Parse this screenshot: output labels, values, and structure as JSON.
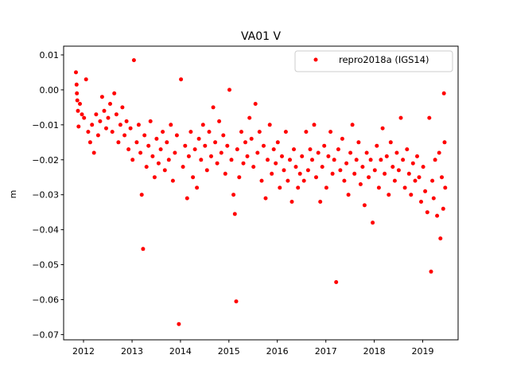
{
  "chart_data": {
    "type": "scatter",
    "title": "VA01 V",
    "xlabel": "",
    "ylabel": "m",
    "xlim": [
      "2011-08-04",
      "2019-09-25"
    ],
    "ylim": [
      -0.0715,
      0.0125
    ],
    "x_ticks": [
      "2012",
      "2013",
      "2014",
      "2015",
      "2016",
      "2017",
      "2018",
      "2019"
    ],
    "y_ticks": [
      "0.01",
      "0.00",
      "−0.01",
      "−0.02",
      "−0.03",
      "−0.04",
      "−0.05",
      "−0.06",
      "−0.07"
    ],
    "y_tick_values": [
      0.01,
      0.0,
      -0.01,
      -0.02,
      -0.03,
      -0.04,
      -0.05,
      -0.06,
      -0.07
    ],
    "grid": false,
    "legend_position": "top-right",
    "marker_color": "#ff0000",
    "series": [
      {
        "name": "repro2018a (IGS14)",
        "color": "#ff0000",
        "points": [
          [
            "2011-11-05",
            0.005
          ],
          [
            "2011-11-10",
            0.0015
          ],
          [
            "2011-11-12",
            -0.001
          ],
          [
            "2011-11-15",
            -0.003
          ],
          [
            "2011-11-20",
            -0.006
          ],
          [
            "2011-11-25",
            -0.0105
          ],
          [
            "2011-12-05",
            -0.004
          ],
          [
            "2011-12-20",
            -0.007
          ],
          [
            "2012-01-05",
            -0.008
          ],
          [
            "2012-01-20",
            0.003
          ],
          [
            "2012-02-05",
            -0.012
          ],
          [
            "2012-02-20",
            -0.015
          ],
          [
            "2012-03-05",
            -0.01
          ],
          [
            "2012-03-20",
            -0.018
          ],
          [
            "2012-04-05",
            -0.007
          ],
          [
            "2012-04-20",
            -0.013
          ],
          [
            "2012-05-05",
            -0.009
          ],
          [
            "2012-05-20",
            -0.002
          ],
          [
            "2012-06-05",
            -0.006
          ],
          [
            "2012-06-20",
            -0.011
          ],
          [
            "2012-07-05",
            -0.008
          ],
          [
            "2012-07-20",
            -0.004
          ],
          [
            "2012-08-05",
            -0.012
          ],
          [
            "2012-08-20",
            -0.001
          ],
          [
            "2012-09-05",
            -0.007
          ],
          [
            "2012-09-20",
            -0.015
          ],
          [
            "2012-10-05",
            -0.01
          ],
          [
            "2012-10-20",
            -0.005
          ],
          [
            "2012-11-05",
            -0.013
          ],
          [
            "2012-11-20",
            -0.009
          ],
          [
            "2012-12-05",
            -0.017
          ],
          [
            "2012-12-20",
            -0.011
          ],
          [
            "2013-01-05",
            -0.02
          ],
          [
            "2013-01-15",
            0.0085
          ],
          [
            "2013-02-05",
            -0.015
          ],
          [
            "2013-02-20",
            -0.01
          ],
          [
            "2013-03-05",
            -0.018
          ],
          [
            "2013-03-15",
            -0.03
          ],
          [
            "2013-03-25",
            -0.0455
          ],
          [
            "2013-04-05",
            -0.013
          ],
          [
            "2013-04-20",
            -0.022
          ],
          [
            "2013-05-05",
            -0.016
          ],
          [
            "2013-05-20",
            -0.009
          ],
          [
            "2013-06-05",
            -0.019
          ],
          [
            "2013-06-20",
            -0.025
          ],
          [
            "2013-07-05",
            -0.014
          ],
          [
            "2013-07-20",
            -0.021
          ],
          [
            "2013-08-05",
            -0.017
          ],
          [
            "2013-08-20",
            -0.012
          ],
          [
            "2013-09-05",
            -0.023
          ],
          [
            "2013-09-20",
            -0.015
          ],
          [
            "2013-10-05",
            -0.02
          ],
          [
            "2013-10-20",
            -0.01
          ],
          [
            "2013-11-05",
            -0.026
          ],
          [
            "2013-11-20",
            -0.018
          ],
          [
            "2013-12-05",
            -0.013
          ],
          [
            "2013-12-20",
            -0.067
          ],
          [
            "2014-01-05",
            0.003
          ],
          [
            "2014-01-20",
            -0.022
          ],
          [
            "2014-02-05",
            -0.016
          ],
          [
            "2014-02-20",
            -0.031
          ],
          [
            "2014-03-05",
            -0.019
          ],
          [
            "2014-03-20",
            -0.012
          ],
          [
            "2014-04-05",
            -0.025
          ],
          [
            "2014-04-20",
            -0.017
          ],
          [
            "2014-05-05",
            -0.028
          ],
          [
            "2014-05-20",
            -0.014
          ],
          [
            "2014-06-05",
            -0.02
          ],
          [
            "2014-06-20",
            -0.01
          ],
          [
            "2014-07-05",
            -0.016
          ],
          [
            "2014-07-20",
            -0.023
          ],
          [
            "2014-08-05",
            -0.012
          ],
          [
            "2014-08-20",
            -0.019
          ],
          [
            "2014-09-05",
            -0.005
          ],
          [
            "2014-09-20",
            -0.015
          ],
          [
            "2014-10-05",
            -0.021
          ],
          [
            "2014-10-20",
            -0.009
          ],
          [
            "2014-11-05",
            -0.018
          ],
          [
            "2014-11-20",
            -0.013
          ],
          [
            "2014-12-05",
            -0.024
          ],
          [
            "2014-12-20",
            -0.016
          ],
          [
            "2015-01-05",
            0.0
          ],
          [
            "2015-01-20",
            -0.02
          ],
          [
            "2015-02-05",
            -0.03
          ],
          [
            "2015-02-15",
            -0.0355
          ],
          [
            "2015-02-25",
            -0.0605
          ],
          [
            "2015-03-05",
            -0.017
          ],
          [
            "2015-03-20",
            -0.025
          ],
          [
            "2015-04-05",
            -0.012
          ],
          [
            "2015-04-20",
            -0.021
          ],
          [
            "2015-05-05",
            -0.015
          ],
          [
            "2015-05-20",
            -0.019
          ],
          [
            "2015-06-05",
            -0.008
          ],
          [
            "2015-06-20",
            -0.014
          ],
          [
            "2015-07-05",
            -0.022
          ],
          [
            "2015-07-20",
            -0.004
          ],
          [
            "2015-08-05",
            -0.018
          ],
          [
            "2015-08-20",
            -0.012
          ],
          [
            "2015-09-05",
            -0.026
          ],
          [
            "2015-09-20",
            -0.016
          ],
          [
            "2015-10-05",
            -0.031
          ],
          [
            "2015-10-20",
            -0.02
          ],
          [
            "2015-11-05",
            -0.01
          ],
          [
            "2015-11-20",
            -0.024
          ],
          [
            "2015-12-05",
            -0.017
          ],
          [
            "2015-12-20",
            -0.021
          ],
          [
            "2016-01-05",
            -0.015
          ],
          [
            "2016-01-20",
            -0.028
          ],
          [
            "2016-02-05",
            -0.019
          ],
          [
            "2016-02-20",
            -0.023
          ],
          [
            "2016-03-05",
            -0.012
          ],
          [
            "2016-03-20",
            -0.026
          ],
          [
            "2016-04-05",
            -0.02
          ],
          [
            "2016-04-20",
            -0.032
          ],
          [
            "2016-05-05",
            -0.017
          ],
          [
            "2016-05-20",
            -0.022
          ],
          [
            "2016-06-05",
            -0.028
          ],
          [
            "2016-06-20",
            -0.024
          ],
          [
            "2016-07-05",
            -0.019
          ],
          [
            "2016-07-20",
            -0.026
          ],
          [
            "2016-08-05",
            -0.012
          ],
          [
            "2016-08-20",
            -0.023
          ],
          [
            "2016-09-05",
            -0.017
          ],
          [
            "2016-09-20",
            -0.02
          ],
          [
            "2016-10-05",
            -0.01
          ],
          [
            "2016-10-20",
            -0.025
          ],
          [
            "2016-11-05",
            -0.018
          ],
          [
            "2016-11-20",
            -0.032
          ],
          [
            "2016-12-05",
            -0.022
          ],
          [
            "2016-12-20",
            -0.016
          ],
          [
            "2017-01-05",
            -0.028
          ],
          [
            "2017-01-20",
            -0.019
          ],
          [
            "2017-02-05",
            -0.012
          ],
          [
            "2017-02-20",
            -0.024
          ],
          [
            "2017-03-05",
            -0.02
          ],
          [
            "2017-03-20",
            -0.055
          ],
          [
            "2017-04-05",
            -0.017
          ],
          [
            "2017-04-20",
            -0.023
          ],
          [
            "2017-05-05",
            -0.014
          ],
          [
            "2017-05-20",
            -0.026
          ],
          [
            "2017-06-05",
            -0.021
          ],
          [
            "2017-06-20",
            -0.03
          ],
          [
            "2017-07-05",
            -0.018
          ],
          [
            "2017-07-20",
            -0.01
          ],
          [
            "2017-08-05",
            -0.024
          ],
          [
            "2017-08-20",
            -0.02
          ],
          [
            "2017-09-05",
            -0.015
          ],
          [
            "2017-09-20",
            -0.027
          ],
          [
            "2017-10-05",
            -0.022
          ],
          [
            "2017-10-20",
            -0.033
          ],
          [
            "2017-11-05",
            -0.018
          ],
          [
            "2017-11-20",
            -0.025
          ],
          [
            "2017-12-05",
            -0.02
          ],
          [
            "2017-12-20",
            -0.038
          ],
          [
            "2018-01-05",
            -0.023
          ],
          [
            "2018-01-20",
            -0.016
          ],
          [
            "2018-02-05",
            -0.028
          ],
          [
            "2018-02-20",
            -0.02
          ],
          [
            "2018-03-05",
            -0.011
          ],
          [
            "2018-03-20",
            -0.024
          ],
          [
            "2018-04-05",
            -0.019
          ],
          [
            "2018-04-20",
            -0.03
          ],
          [
            "2018-05-05",
            -0.015
          ],
          [
            "2018-05-20",
            -0.022
          ],
          [
            "2018-06-05",
            -0.026
          ],
          [
            "2018-06-20",
            -0.018
          ],
          [
            "2018-07-05",
            -0.023
          ],
          [
            "2018-07-20",
            -0.008
          ],
          [
            "2018-08-05",
            -0.02
          ],
          [
            "2018-08-20",
            -0.028
          ],
          [
            "2018-09-05",
            -0.017
          ],
          [
            "2018-09-20",
            -0.024
          ],
          [
            "2018-10-05",
            -0.03
          ],
          [
            "2018-10-20",
            -0.021
          ],
          [
            "2018-11-05",
            -0.026
          ],
          [
            "2018-11-20",
            -0.019
          ],
          [
            "2018-12-05",
            -0.025
          ],
          [
            "2018-12-20",
            -0.032
          ],
          [
            "2019-01-05",
            -0.022
          ],
          [
            "2019-01-20",
            -0.029
          ],
          [
            "2019-02-05",
            -0.035
          ],
          [
            "2019-02-20",
            -0.008
          ],
          [
            "2019-03-05",
            -0.052
          ],
          [
            "2019-03-15",
            -0.026
          ],
          [
            "2019-03-25",
            -0.031
          ],
          [
            "2019-04-05",
            -0.02
          ],
          [
            "2019-04-20",
            -0.036
          ],
          [
            "2019-05-05",
            -0.018
          ],
          [
            "2019-05-15",
            -0.0425
          ],
          [
            "2019-05-25",
            -0.025
          ],
          [
            "2019-06-05",
            -0.034
          ],
          [
            "2019-06-10",
            -0.001
          ],
          [
            "2019-06-15",
            -0.015
          ],
          [
            "2019-06-20",
            -0.028
          ]
        ]
      }
    ]
  }
}
